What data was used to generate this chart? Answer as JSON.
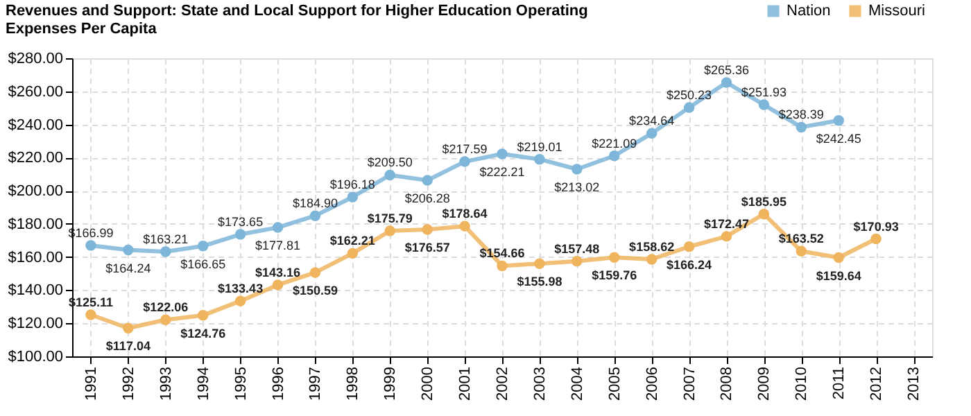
{
  "chart_data": {
    "type": "line",
    "title": "Revenues and Support: State and Local Support for Higher Education Operating Expenses Per Capita",
    "categories": [
      "1991",
      "1992",
      "1993",
      "1994",
      "1995",
      "1996",
      "1997",
      "1998",
      "1999",
      "2000",
      "2001",
      "2002",
      "2003",
      "2004",
      "2005",
      "2006",
      "2007",
      "2008",
      "2009",
      "2010",
      "2011",
      "2012",
      "2013"
    ],
    "series": [
      {
        "name": "Nation",
        "color": "#7eb6d9",
        "values": [
          166.99,
          164.24,
          163.21,
          166.65,
          173.65,
          177.81,
          184.9,
          196.18,
          209.5,
          206.28,
          217.59,
          222.21,
          219.01,
          213.02,
          221.09,
          234.64,
          250.23,
          265.36,
          251.93,
          238.39,
          242.45,
          null,
          null
        ],
        "value_labels": [
          "$166.99",
          "$164.24",
          "$163.21",
          "$166.65",
          "$173.65",
          "$177.81",
          "$184.90",
          "$196.18",
          "$209.50",
          "$206.28",
          "$217.59",
          "$222.21",
          "$219.01",
          "$213.02",
          "$221.09",
          "$234.64",
          "$250.23",
          "$265.36",
          "$251.93",
          "$238.39",
          "$242.45",
          null,
          null
        ]
      },
      {
        "name": "Missouri",
        "color": "#f0b45e",
        "values": [
          125.11,
          117.04,
          122.06,
          124.76,
          133.43,
          143.16,
          150.59,
          162.21,
          175.79,
          176.57,
          178.64,
          154.66,
          155.98,
          157.48,
          159.76,
          158.62,
          166.24,
          172.47,
          185.95,
          163.52,
          159.64,
          170.93,
          null
        ],
        "value_labels": [
          "$125.11",
          "$117.04",
          "$122.06",
          "$124.76",
          "$133.43",
          "$143.16",
          "$150.59",
          "$162.21",
          "$175.79",
          "$176.57",
          "$178.64",
          "$154.66",
          "$155.98",
          "$157.48",
          "$159.76",
          "$158.62",
          "$166.24",
          "$172.47",
          "$185.95",
          "$163.52",
          "$159.64",
          "$170.93",
          null
        ]
      }
    ],
    "ylim": [
      100,
      280
    ],
    "yticks": [
      {
        "value": 100,
        "label": "$100.00"
      },
      {
        "value": 120,
        "label": "$120.00"
      },
      {
        "value": 140,
        "label": "$140.00"
      },
      {
        "value": 160,
        "label": "$160.00"
      },
      {
        "value": 180,
        "label": "$180.00"
      },
      {
        "value": 200,
        "label": "$200.00"
      },
      {
        "value": 220,
        "label": "$220.00"
      },
      {
        "value": 240,
        "label": "$240.00"
      },
      {
        "value": 260,
        "label": "$260.00"
      },
      {
        "value": 280,
        "label": "$280.00"
      }
    ],
    "grid": true,
    "legend": "top right",
    "marker": "circle",
    "line_style": "solid",
    "data_labels": true
  }
}
